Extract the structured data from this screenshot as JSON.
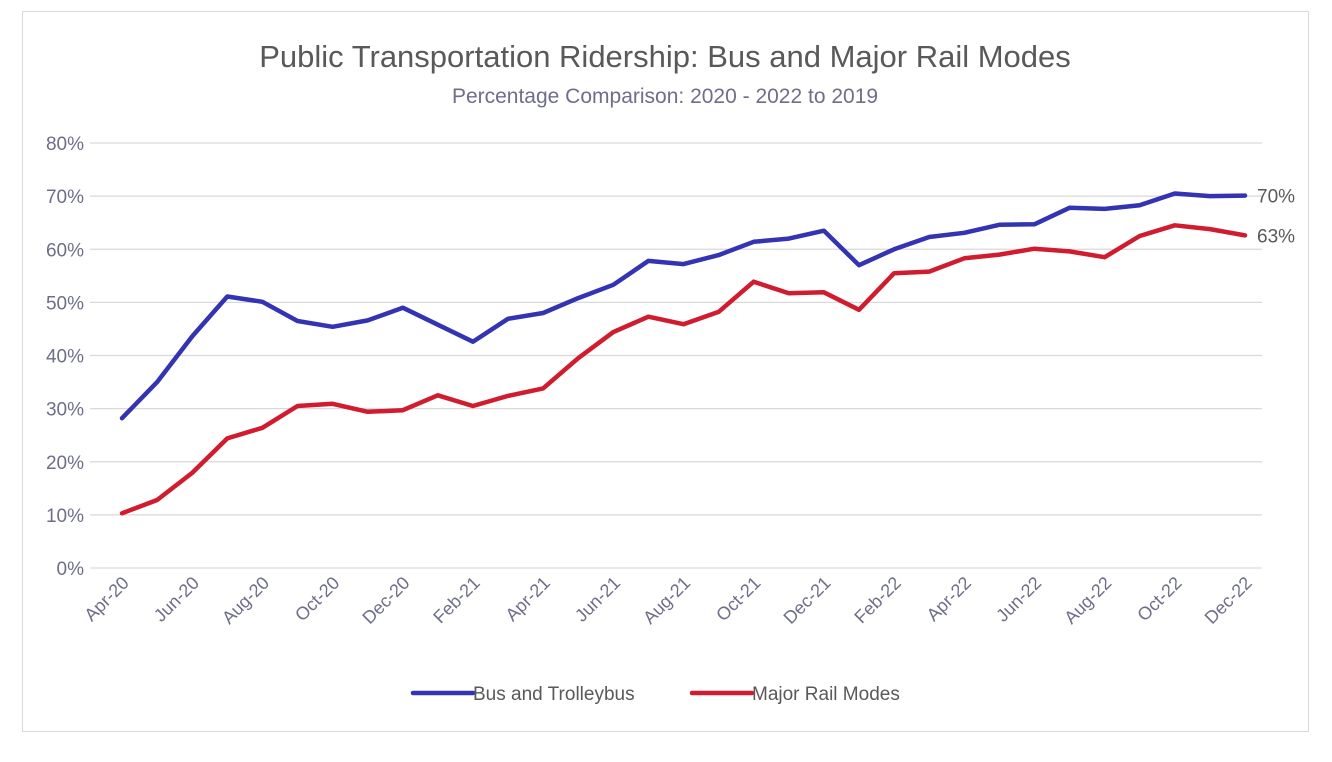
{
  "chart_data": {
    "type": "line",
    "title": "Public Transportation Ridership: Bus and Major Rail Modes",
    "subtitle": "Percentage Comparison: 2020 - 2022 to 2019",
    "xlabel": "",
    "ylabel": "",
    "ylim": [
      0,
      80
    ],
    "y_ticks": [
      "0%",
      "10%",
      "20%",
      "30%",
      "40%",
      "50%",
      "60%",
      "70%",
      "80%"
    ],
    "grid": true,
    "legend_position": "bottom",
    "categories": [
      "Apr-20",
      "May-20",
      "Jun-20",
      "Jul-20",
      "Aug-20",
      "Sep-20",
      "Oct-20",
      "Nov-20",
      "Dec-20",
      "Jan-21",
      "Feb-21",
      "Mar-21",
      "Apr-21",
      "May-21",
      "Jun-21",
      "Jul-21",
      "Aug-21",
      "Sep-21",
      "Oct-21",
      "Nov-21",
      "Dec-21",
      "Jan-22",
      "Feb-22",
      "Mar-22",
      "Apr-22",
      "May-22",
      "Jun-22",
      "Jul-22",
      "Aug-22",
      "Sep-22",
      "Oct-22",
      "Nov-22",
      "Dec-22"
    ],
    "x_tick_labels": [
      "Apr-20",
      "Jun-20",
      "Aug-20",
      "Oct-20",
      "Dec-20",
      "Feb-21",
      "Apr-21",
      "Jun-21",
      "Aug-21",
      "Oct-21",
      "Dec-21",
      "Feb-22",
      "Apr-22",
      "Jun-22",
      "Aug-22",
      "Oct-22",
      "Dec-22"
    ],
    "series": [
      {
        "name": "Bus and Trolleybus",
        "color": "#3333b3",
        "end_label": "70%",
        "values": [
          28.2,
          35.0,
          43.6,
          51.1,
          50.1,
          46.5,
          45.4,
          46.6,
          49.0,
          45.8,
          42.6,
          46.9,
          48.0,
          50.8,
          53.3,
          57.8,
          57.2,
          58.9,
          61.4,
          62.0,
          63.5,
          57.0,
          60.0,
          62.3,
          63.1,
          64.6,
          64.7,
          67.8,
          67.6,
          68.3,
          70.5,
          70.0,
          70.1
        ]
      },
      {
        "name": "Major Rail Modes",
        "color": "#d01c2e",
        "end_label": "63%",
        "values": [
          10.3,
          12.8,
          17.9,
          24.4,
          26.4,
          30.5,
          30.9,
          29.4,
          29.7,
          32.5,
          30.5,
          32.4,
          33.8,
          39.5,
          44.4,
          47.3,
          45.9,
          48.2,
          53.9,
          51.7,
          51.9,
          48.6,
          55.5,
          55.8,
          58.3,
          59.0,
          60.1,
          59.6,
          58.5,
          62.5,
          64.5,
          63.8,
          62.6
        ]
      }
    ]
  }
}
